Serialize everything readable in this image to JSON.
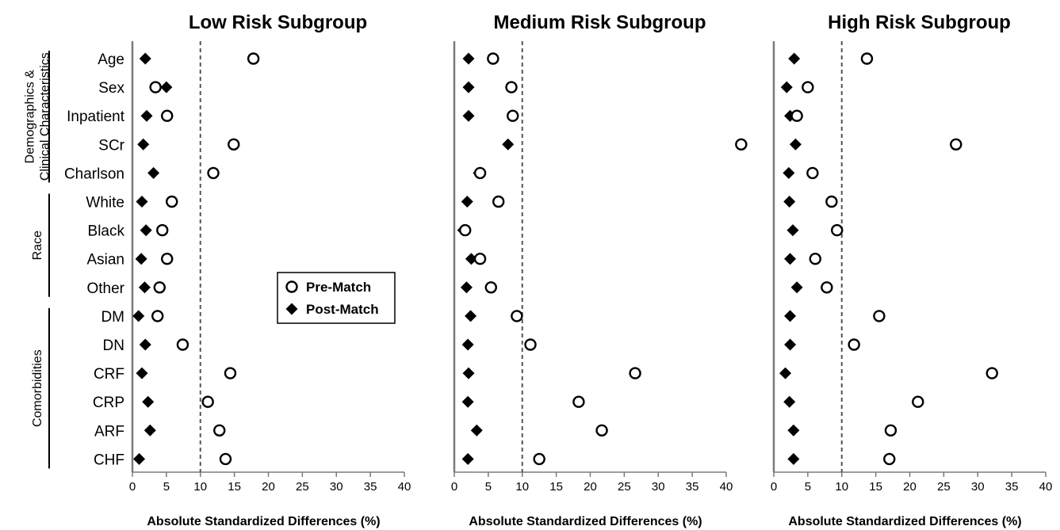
{
  "chart_data": {
    "type": "scatter",
    "row_labels": [
      "Age",
      "Sex",
      "Inpatient",
      "SCr",
      "Charlson",
      "White",
      "Black",
      "Asian",
      "Other",
      "DM",
      "DN",
      "CRF",
      "CRP",
      "ARF",
      "CHF"
    ],
    "groups": [
      {
        "label": "Demographics &\nClinical Characteristics",
        "lines": [
          "Demographics &",
          "Clinical Characteristics"
        ],
        "start": 0,
        "end": 4
      },
      {
        "label": "Race",
        "lines": [
          "Race"
        ],
        "start": 5,
        "end": 8
      },
      {
        "label": "Comorbidities",
        "lines": [
          "Comorbidities"
        ],
        "start": 9,
        "end": 14
      }
    ],
    "legend": {
      "placement": "center-right of first panel",
      "entries": [
        {
          "name": "Pre-Match",
          "marker": "open-circle"
        },
        {
          "name": "Post-Match",
          "marker": "filled-diamond"
        }
      ]
    },
    "xlim": [
      0,
      40
    ],
    "xticks": [
      "0",
      "5",
      "10",
      "15",
      "20",
      "25",
      "30",
      "35",
      "40"
    ],
    "reference_line": 10,
    "panels": [
      {
        "title": "Low Risk Subgroup",
        "xlabel": "Absolute Standardized Differences (%)",
        "pre_match": [
          17.8,
          3.4,
          5.1,
          14.9,
          11.9,
          5.8,
          4.4,
          5.1,
          4.0,
          3.7,
          7.4,
          14.4,
          11.1,
          12.8,
          13.7
        ],
        "post_match": [
          1.9,
          5.0,
          2.1,
          1.6,
          3.1,
          1.4,
          2.0,
          1.3,
          1.8,
          0.9,
          1.9,
          1.4,
          2.3,
          2.6,
          1.0
        ]
      },
      {
        "title": "Medium Risk Subgroup",
        "xlabel": "Absolute Standardized Differences (%)",
        "pre_match": [
          5.7,
          8.4,
          8.6,
          42.2,
          3.8,
          6.5,
          1.6,
          3.8,
          5.4,
          9.2,
          11.2,
          26.6,
          18.3,
          21.7,
          12.5
        ],
        "post_match": [
          2.1,
          2.1,
          2.1,
          7.9,
          3.6,
          1.9,
          1.3,
          2.5,
          1.8,
          2.4,
          2.0,
          2.1,
          2.0,
          3.3,
          2.0
        ]
      },
      {
        "title": "High Risk Subgroup",
        "xlabel": "Absolute Standardized Differences (%)",
        "pre_match": [
          13.7,
          5.0,
          3.4,
          26.8,
          5.7,
          8.5,
          9.3,
          6.1,
          7.8,
          15.5,
          11.8,
          32.1,
          21.2,
          17.2,
          17.0
        ],
        "post_match": [
          3.0,
          1.9,
          2.4,
          3.2,
          2.2,
          2.3,
          2.8,
          2.4,
          3.4,
          2.4,
          2.4,
          1.7,
          2.3,
          2.9,
          2.9
        ]
      }
    ],
    "grid": false
  }
}
